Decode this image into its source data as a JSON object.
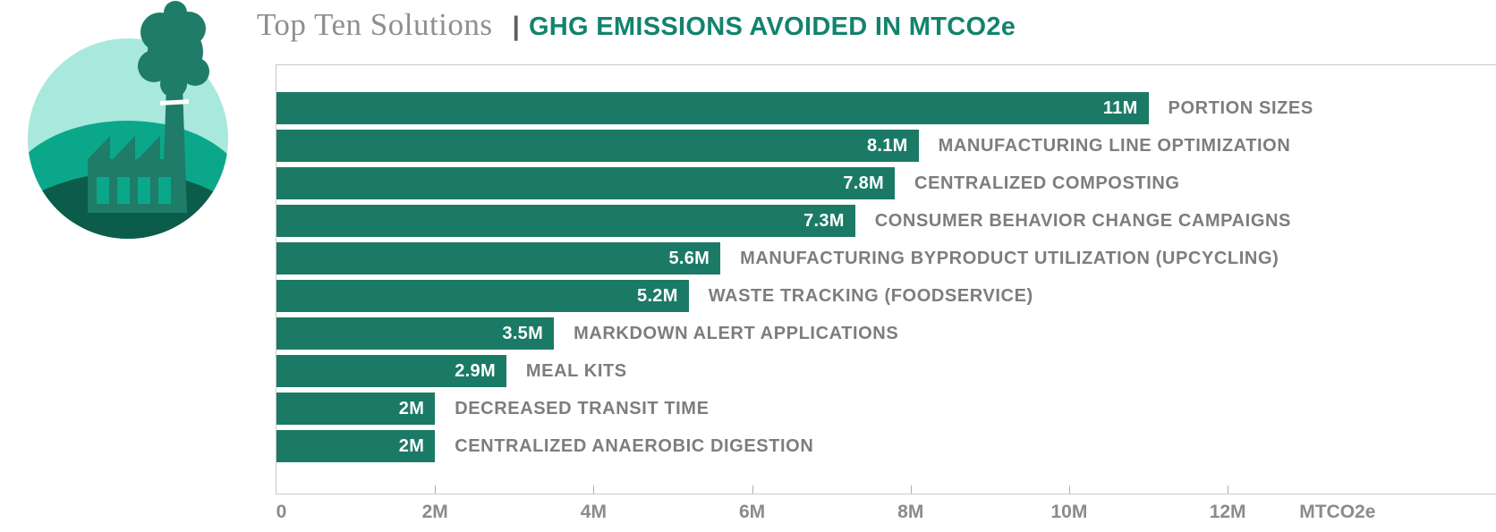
{
  "header": {
    "title_serif": "Top Ten Solutions",
    "separator": "|",
    "title_bold": "GHG EMISSIONS AVOIDED IN MTCO2e"
  },
  "icon": {
    "name": "factory-emissions-icon",
    "colors": {
      "sky": "#a9e8dd",
      "hill_mid": "#0ba78b",
      "hill_dark": "#0c5c4b",
      "factory": "#1e7c68",
      "windows": "#0ba78b"
    }
  },
  "colors": {
    "bar": "#1b7a66",
    "accent_title": "#12836c",
    "value_text": "#ffffff",
    "category_text": "#7d7d7d",
    "axis_text": "#8b8b8b",
    "plot_border": "#c9c9c9"
  },
  "chart_data": {
    "type": "bar",
    "orientation": "horizontal",
    "title": "Top Ten Solutions | GHG EMISSIONS AVOIDED IN MTCO2e",
    "xlabel": "MTCO2e",
    "xlim_millions": [
      0,
      12
    ],
    "x_tick_labels": [
      "0",
      "2M",
      "4M",
      "6M",
      "8M",
      "10M",
      "12M"
    ],
    "x_tick_values_millions": [
      0,
      2,
      4,
      6,
      8,
      10,
      12
    ],
    "grid": false,
    "legend": "none",
    "unit_label": "MTCO2e",
    "bars": [
      {
        "category": "PORTION SIZES",
        "value_label": "11M",
        "value_millions": 11.0
      },
      {
        "category": "MANUFACTURING LINE OPTIMIZATION",
        "value_label": "8.1M",
        "value_millions": 8.1
      },
      {
        "category": "CENTRALIZED COMPOSTING",
        "value_label": "7.8M",
        "value_millions": 7.8
      },
      {
        "category": "CONSUMER BEHAVIOR CHANGE CAMPAIGNS",
        "value_label": "7.3M",
        "value_millions": 7.3
      },
      {
        "category": "MANUFACTURING BYPRODUCT UTILIZATION (UPCYCLING)",
        "value_label": "5.6M",
        "value_millions": 5.6
      },
      {
        "category": "WASTE TRACKING (FOODSERVICE)",
        "value_label": "5.2M",
        "value_millions": 5.2
      },
      {
        "category": "MARKDOWN ALERT APPLICATIONS",
        "value_label": "3.5M",
        "value_millions": 3.5
      },
      {
        "category": "MEAL KITS",
        "value_label": "2.9M",
        "value_millions": 2.9
      },
      {
        "category": "DECREASED TRANSIT TIME",
        "value_label": "2M",
        "value_millions": 2.0
      },
      {
        "category": "CENTRALIZED ANAEROBIC DIGESTION",
        "value_label": "2M",
        "value_millions": 2.0
      }
    ],
    "layout": {
      "axis_max_position_pct": 78,
      "unit_label_position_pct": 87
    }
  }
}
